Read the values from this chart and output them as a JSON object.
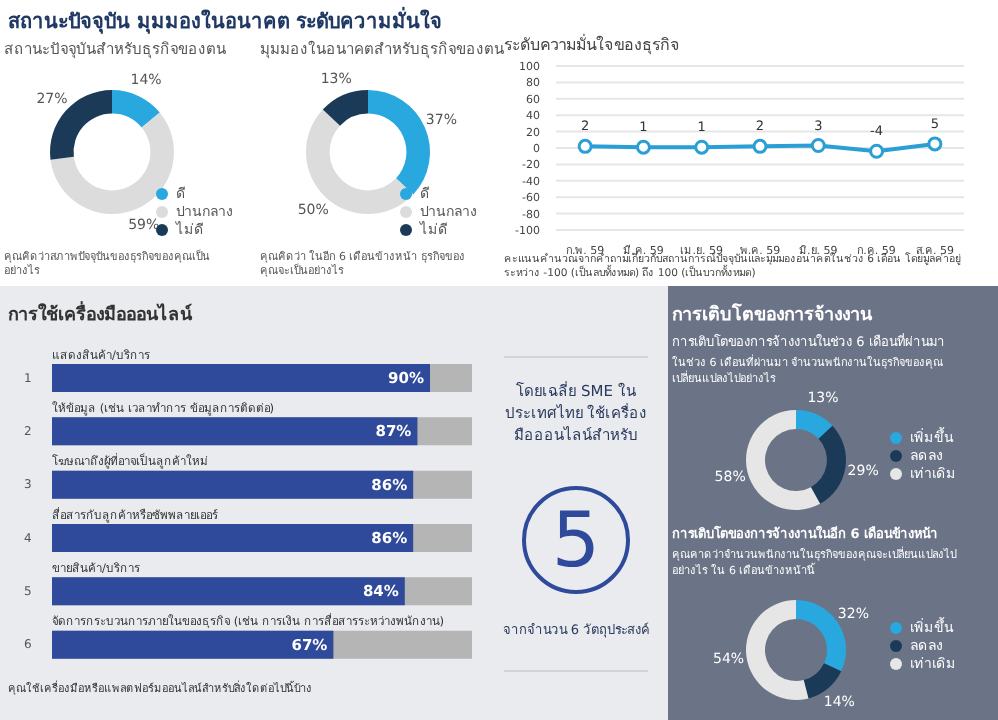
{
  "chart_data": [
    {
      "type": "other",
      "title": "สถานะปัจจุบัน มุมมองในอนาคต ระดับความมั่นใจ"
    },
    {
      "type": "donut",
      "title": "สถานะปัจจุบันสำหรับธุรกิจของตน",
      "categories": [
        "ดี",
        "ปานกลาง",
        "ไม่ดี"
      ],
      "values": [
        14,
        59,
        27
      ],
      "colors": [
        "#29a8e0",
        "#dcdcdc",
        "#1b3a57"
      ],
      "value_labels": [
        "14%",
        "59%",
        "27%"
      ],
      "legend": "bottom right",
      "annotations": [
        "คุณคิดว่าสภาพปัจจุบันของธุรกิจของคุณเป็นอย่างไร"
      ]
    },
    {
      "type": "donut",
      "title": "มุมมองในอนาคตสำหรับธุรกิจของตน",
      "categories": [
        "ดี",
        "ปานกลาง",
        "ไม่ดี"
      ],
      "values": [
        37,
        50,
        13
      ],
      "colors": [
        "#29a8e0",
        "#dcdcdc",
        "#1b3a57"
      ],
      "value_labels": [
        "37%",
        "50%",
        "13%"
      ],
      "legend": "bottom right",
      "annotations": [
        "คุณคิดว่า ในอีก 6 เดือนข้างหน้า ธุรกิจของคุณจะเป็นอย่างไร"
      ]
    },
    {
      "type": "line",
      "title": "ระดับความมั่นใจของธุรกิจ",
      "categories": [
        "ก.พ. 59",
        "มี.ค. 59",
        "เม.ย. 59",
        "พ.ค. 59",
        "มิ.ย. 59",
        "ก.ค. 59",
        "ส.ค. 59"
      ],
      "series": [
        {
          "color": "#2a9fd6",
          "values": [
            2,
            1,
            1,
            2,
            3,
            -4,
            5
          ]
        }
      ],
      "ylim": [
        -100,
        100
      ],
      "yticks": [
        -100,
        -80,
        -60,
        -40,
        -20,
        0,
        20,
        40,
        60,
        80,
        100
      ],
      "grid": "y",
      "marker": "circle",
      "data_labels": true,
      "annotations": [
        "คะแนนคำนวณจากคำถามเกี่ยวกับสถานการณ์ปัจจุบันและมุมมองอนาคตในช่วง 6 เดือน โดยมูลค่าอยู่ระหว่าง -100 (เป็นลบทั้งหมด) ถึง 100 (เป็นบวกทั้งหมด)"
      ]
    },
    {
      "type": "bar",
      "title": "การใช้เครื่องมือออนไลน์",
      "orientation": "horizontal",
      "categories": [
        "แสดงสินค้า/บริการ",
        "ให้ข้อมูล (เช่น เวลาทำการ ข้อมูลการติดต่อ)",
        "โฆษณาถึงผู้ที่อาจเป็นลูกค้าใหม่",
        "สื่อสารกับลูกค้าหรือซัพพลายเออร์",
        "ขายสินค้า/บริการ",
        "จัดการกระบวนการภายในของธุรกิจ (เช่น การเงิน การสื่อสารระหว่างพนักงาน)"
      ],
      "values": [
        90,
        87,
        86,
        86,
        84,
        67
      ],
      "color": "#2f4a9b",
      "value_labels": [
        "90%",
        "87%",
        "86%",
        "86%",
        "84%",
        "67%"
      ],
      "xlim": [
        0,
        100
      ],
      "tick_labels": "y",
      "annotations": [
        "1",
        "2",
        "3",
        "4",
        "5",
        "6",
        "คุณใช้เครื่องมือหรือแพลตฟอร์มออนไลน์สำหรับสิ่งใดต่อไปนี้บ้าง"
      ]
    },
    {
      "type": "other",
      "title": "โดยเฉลี่ย SME ในประเทศไทย ใช้เครื่องมือออนไลน์สำหรับ",
      "annotations": [
        "5",
        "จากจำนวน 6 วัตถุประสงค์"
      ]
    },
    {
      "type": "donut",
      "title": "การเติบโตของการจ้างงาน",
      "subtitle": "การเติบโตของการจ้างงานในช่วง 6 เดือนที่ผ่านมา",
      "categories": [
        "เพิ่มขึ้น",
        "ลดลง",
        "เท่าเดิม"
      ],
      "values": [
        13,
        29,
        58
      ],
      "colors": [
        "#29a8e0",
        "#1b3a57",
        "#e6e6e6"
      ],
      "value_labels": [
        "13%",
        "29%",
        "58%"
      ],
      "legend": "right",
      "annotations": [
        "ในช่วง 6 เดือนที่ผ่านมา จำนวนพนักงานในธุรกิจของคุณเปลี่ยนแปลงไปอย่างไร"
      ]
    },
    {
      "type": "donut",
      "title": "การเติบโตของการจ้างงานในอีก 6 เดือนข้างหน้า",
      "categories": [
        "เพิ่มขึ้น",
        "ลดลง",
        "เท่าเดิม"
      ],
      "values": [
        32,
        14,
        54
      ],
      "colors": [
        "#29a8e0",
        "#1b3a57",
        "#e6e6e6"
      ],
      "value_labels": [
        "32%",
        "14%",
        "54%"
      ],
      "legend": "right",
      "annotations": [
        "คุณคาดว่าจำนวนพนักงานในธุรกิจของคุณจะเปลี่ยนแปลงไปอย่างไร ใน 6 เดือนข้างหน้านี้"
      ]
    }
  ]
}
